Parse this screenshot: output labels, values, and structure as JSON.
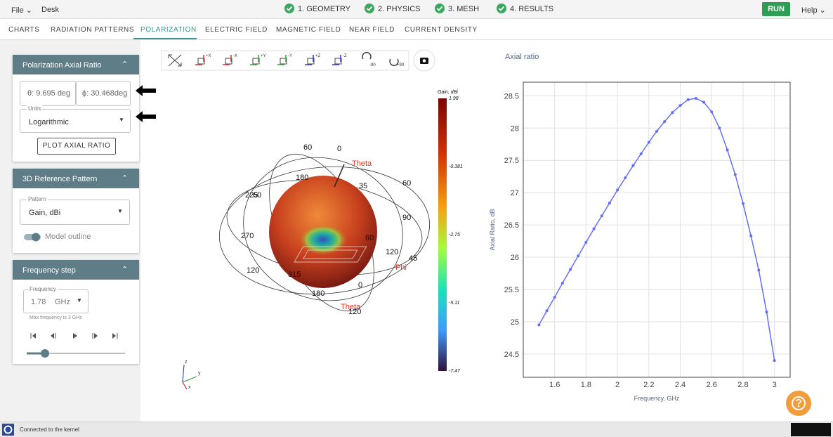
{
  "menu": {
    "file": "File",
    "desk": "Desk",
    "run": "RUN",
    "help": "Help"
  },
  "steps": [
    "1. GEOMETRY",
    "2. PHYSICS",
    "3. MESH",
    "4. RESULTS"
  ],
  "tabs": [
    "CHARTS",
    "RADIATION PATTERNS",
    "POLARIZATION",
    "ELECTRIC FIELD",
    "MAGNETIC FIELD",
    "NEAR FIELD",
    "CURRENT DENSITY"
  ],
  "polarization": {
    "title": "Polarization Axial Ratio",
    "theta": "θ: 9.695 deg",
    "phi": "ϕ: 30.468deg",
    "units_label": "Units",
    "units": "Logarithmic",
    "button": "PLOT AXIAL RATIO"
  },
  "reference": {
    "title": "3D Reference Pattern",
    "pattern_label": "Pattern",
    "pattern": "Gain, dBi",
    "outline": "Model outline"
  },
  "frequency": {
    "title": "Frequency step",
    "label": "Frequency",
    "value": "1.78",
    "unit": "GHz",
    "note": "Max frequency is 3 GHz"
  },
  "toolbar": [
    "+X",
    "-X",
    "+Y",
    "-Y",
    "+Z",
    "-Z",
    "-90",
    "+90"
  ],
  "view3d": {
    "labels": [
      "60",
      "0",
      "Theta",
      "180",
      "35",
      "60",
      "225",
      "60",
      "90",
      "270",
      "60",
      "120",
      "45",
      "Phi",
      "120",
      "315",
      "0",
      "180",
      "Theta",
      "120"
    ],
    "axes": [
      "z",
      "y",
      "x"
    ],
    "colorbar": {
      "title": "Gain, dBi",
      "range": [
        -7.47,
        1.98
      ],
      "ticks": [
        1.98,
        -0.381,
        -2.75,
        -5.11,
        -7.47
      ]
    }
  },
  "status": "Connected to the kernel",
  "chart_data": {
    "type": "line",
    "title": "Axial ratio",
    "xlabel": "Frequency, GHz",
    "ylabel": "Axial Ratio, dB",
    "x": [
      1.5,
      1.55,
      1.6,
      1.65,
      1.7,
      1.75,
      1.8,
      1.85,
      1.9,
      1.95,
      2.0,
      2.05,
      2.1,
      2.15,
      2.2,
      2.25,
      2.3,
      2.35,
      2.4,
      2.45,
      2.5,
      2.55,
      2.6,
      2.65,
      2.7,
      2.75,
      2.8,
      2.85,
      2.9,
      2.95,
      3.0
    ],
    "values": [
      24.95,
      25.17,
      25.38,
      25.6,
      25.81,
      26.02,
      26.23,
      26.44,
      26.64,
      26.84,
      27.04,
      27.23,
      27.42,
      27.6,
      27.78,
      27.95,
      28.1,
      28.24,
      28.35,
      28.44,
      28.46,
      28.4,
      28.25,
      28.0,
      27.66,
      27.28,
      26.83,
      26.33,
      25.8,
      25.15,
      24.4
    ],
    "color": "#636efa",
    "xlim": [
      1.4,
      3.1
    ],
    "ylim": [
      24.14,
      28.71
    ],
    "xticks": [
      1.6,
      1.8,
      2,
      2.2,
      2.4,
      2.6,
      2.8,
      3
    ],
    "yticks": [
      24.5,
      25,
      25.5,
      26,
      26.5,
      27,
      27.5,
      28,
      28.5
    ],
    "grid": true
  }
}
